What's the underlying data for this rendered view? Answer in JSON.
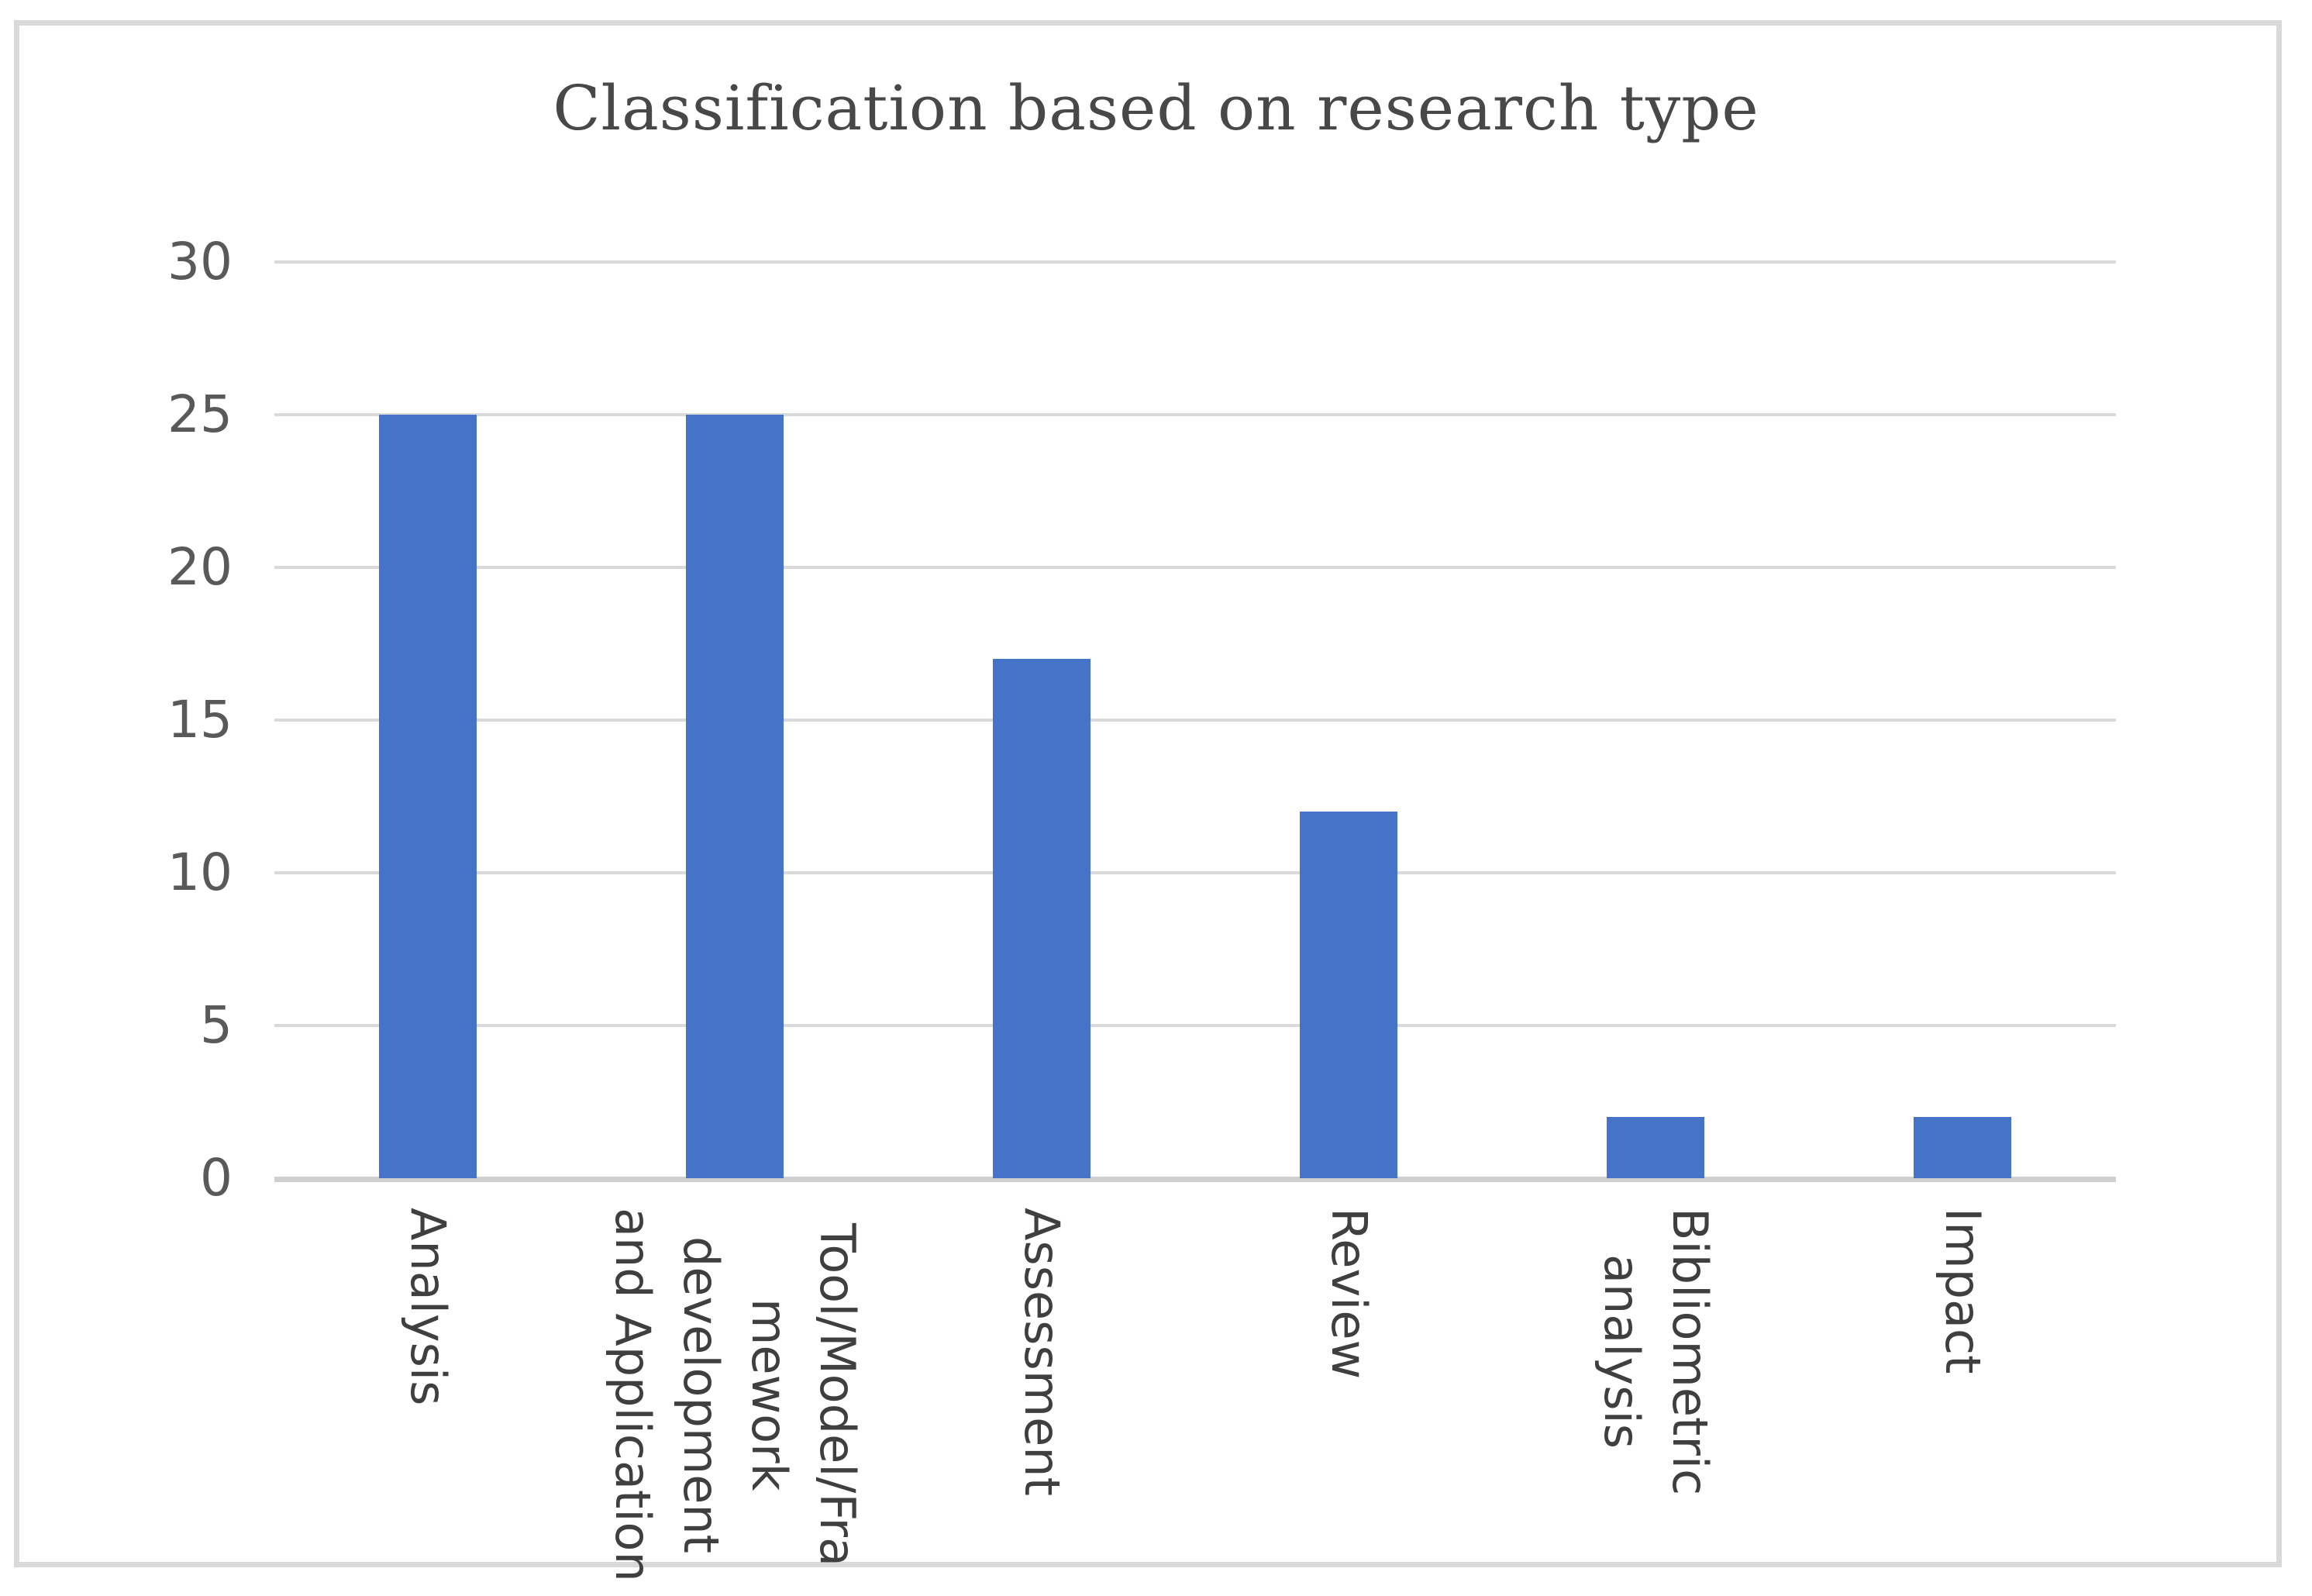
{
  "figure": {
    "background_color": "#ffffff",
    "border_color": "#d9d9d9"
  },
  "chart_data": {
    "type": "bar",
    "title": "Classification based on research type",
    "categories": [
      "Analysis",
      "Tool/Model/Framework development and Application",
      "Assessment",
      "Review",
      "Bibliometric analysis",
      "Impact"
    ],
    "x_tick_labels": [
      "Analysis",
      "Tool/Model/Fra\nmework\ndevelopment\nand Application",
      "Assessment",
      "Review",
      "Bibliometric\nanalysis",
      "Impact"
    ],
    "values": [
      25,
      25,
      17,
      12,
      2,
      2
    ],
    "y_ticks": [
      30,
      25,
      20,
      15,
      10,
      5,
      0
    ],
    "ylim": [
      0,
      30
    ],
    "xlabel": "",
    "ylabel": "",
    "grid": true,
    "legend": false,
    "x_label_rotation_deg": 90,
    "bar_color": "#4573c8",
    "gridline_color": "#dadada",
    "axis_line_color": "#cfcfcf",
    "title_color": "#484848",
    "y_tick_color": "#595959",
    "x_label_color": "#3f3f3f"
  }
}
